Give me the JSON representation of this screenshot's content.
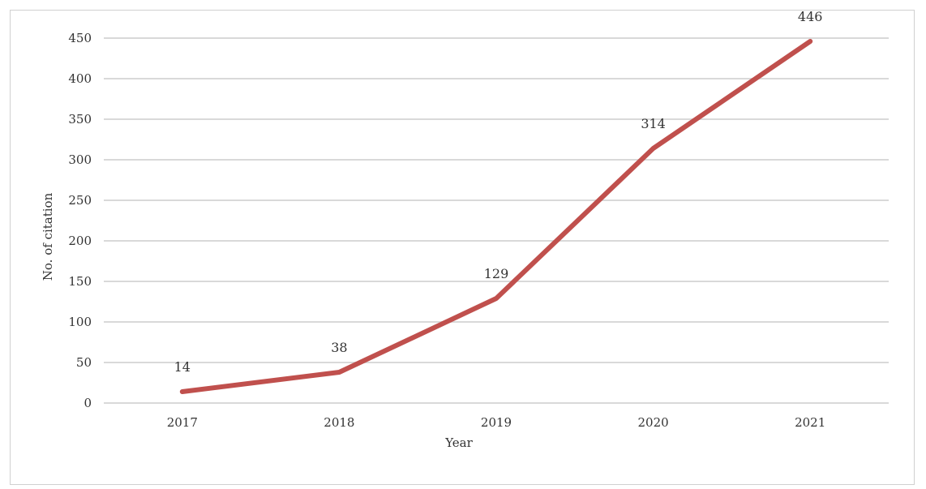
{
  "chart_data": {
    "type": "line",
    "title": "",
    "xlabel": "Year",
    "ylabel": "No. of citation",
    "categories": [
      "2017",
      "2018",
      "2019",
      "2020",
      "2021"
    ],
    "series": [
      {
        "values": [
          14,
          38,
          129,
          314,
          446
        ],
        "color": "#c0504d"
      }
    ],
    "ylim": [
      0,
      450
    ],
    "yticks": [
      0,
      50,
      100,
      150,
      200,
      250,
      300,
      350,
      400,
      450
    ],
    "grid": true,
    "legend": "none",
    "data_labels": true,
    "gridline_color": "#d9d9d9"
  }
}
